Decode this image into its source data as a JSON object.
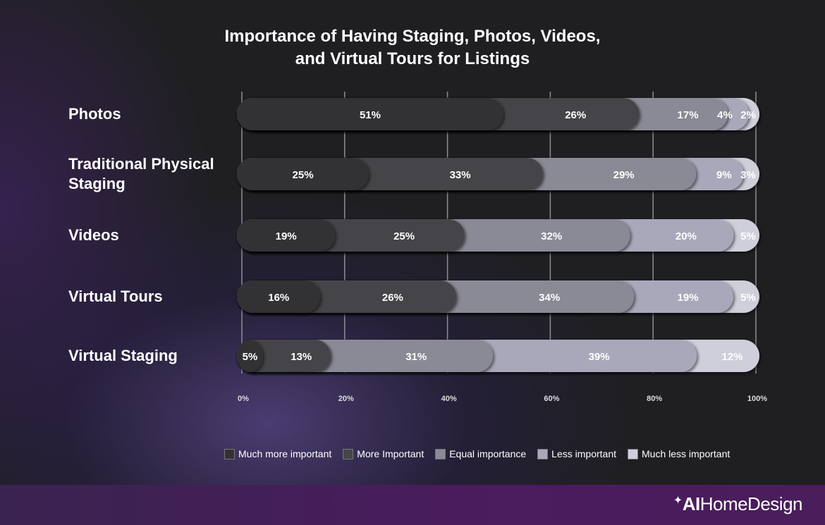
{
  "chart_data": {
    "type": "bar",
    "orientation": "horizontal-stacked-100",
    "title": "Importance of Having Staging, Photos, Videos, and Virtual Tours for Listings",
    "title_lines": [
      "Importance of Having Staging, Photos, Videos,",
      "and Virtual Tours for Listings"
    ],
    "categories": [
      "Photos",
      "Traditional Physical Staging",
      "Videos",
      "Virtual Tours",
      "Virtual Staging"
    ],
    "series": [
      {
        "name": "Much more important",
        "color": "#323235",
        "values": [
          51,
          25,
          19,
          16,
          5
        ]
      },
      {
        "name": "More Important",
        "color": "#45454a",
        "values": [
          26,
          33,
          25,
          26,
          13
        ]
      },
      {
        "name": "Equal importance",
        "color": "#8a8996",
        "values": [
          17,
          29,
          32,
          34,
          31
        ]
      },
      {
        "name": "Less important",
        "color": "#a9a8bb",
        "values": [
          4,
          9,
          20,
          19,
          39
        ]
      },
      {
        "name": "Much less important",
        "color": "#cfcfdb",
        "values": [
          2,
          3,
          5,
          5,
          12
        ]
      }
    ],
    "xticks": [
      "0%",
      "20%",
      "40%",
      "60%",
      "80%",
      "100%"
    ],
    "xlim": [
      0,
      100
    ],
    "grid": true,
    "legend": "bottom"
  },
  "brand": {
    "prefix": "AI",
    "name": "HomeDesign"
  }
}
